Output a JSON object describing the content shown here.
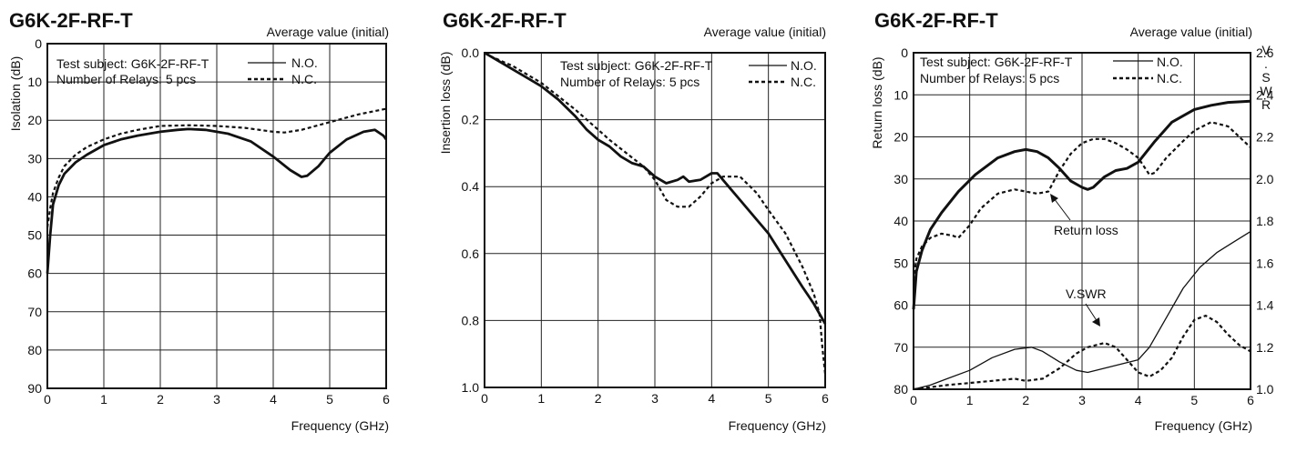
{
  "chart_data": [
    {
      "type": "line",
      "title": "G6K-2F-RF-T",
      "subtitle": "Average value (initial)",
      "xlabel": "Frequency (GHz)",
      "ylabel": "Isolation (dB)",
      "xlim": [
        0,
        6
      ],
      "ylim": [
        0,
        90
      ],
      "y_inverted": true,
      "grid": true,
      "xticks": [
        "0",
        "1",
        "2",
        "3",
        "4",
        "5",
        "6"
      ],
      "yticks": [
        "0",
        "10",
        "20",
        "30",
        "40",
        "50",
        "60",
        "70",
        "80",
        "90"
      ],
      "annotations": [
        "Test subject: G6K-2F-RF-T",
        "Number of Relays: 5 pcs"
      ],
      "series": [
        {
          "name": "N.O.",
          "style": "solid",
          "x": [
            0,
            0.05,
            0.1,
            0.2,
            0.3,
            0.5,
            0.7,
            1.0,
            1.3,
            1.6,
            2.0,
            2.3,
            2.5,
            2.8,
            3.2,
            3.6,
            4.0,
            4.3,
            4.5,
            4.6,
            4.8,
            5.0,
            5.3,
            5.6,
            5.8,
            5.95,
            6.0
          ],
          "y": [
            60,
            50,
            42,
            37,
            34,
            31,
            29,
            26.5,
            25,
            24,
            23,
            22.5,
            22.3,
            22.5,
            23.5,
            25.5,
            29.5,
            33,
            34.8,
            34.5,
            32,
            28.5,
            25,
            23,
            22.5,
            24,
            25
          ]
        },
        {
          "name": "N.C.",
          "style": "dashed",
          "x": [
            0,
            0.05,
            0.1,
            0.2,
            0.3,
            0.5,
            0.7,
            1.0,
            1.3,
            1.6,
            2.0,
            2.5,
            3.0,
            3.5,
            4.0,
            4.2,
            4.5,
            5.0,
            5.5,
            6.0
          ],
          "y": [
            48,
            43,
            39,
            35,
            32,
            29,
            27,
            25,
            23.5,
            22.5,
            21.5,
            21.3,
            21.5,
            22,
            23,
            23.2,
            22.5,
            20.5,
            18.5,
            17
          ]
        }
      ]
    },
    {
      "type": "line",
      "title": "G6K-2F-RF-T",
      "subtitle": "Average value (initial)",
      "xlabel": "Frequency (GHz)",
      "ylabel": "Insertion loss (dB)",
      "xlim": [
        0,
        6
      ],
      "ylim": [
        0,
        1.0
      ],
      "y_inverted": true,
      "grid": true,
      "xticks": [
        "0",
        "1",
        "2",
        "3",
        "4",
        "5",
        "6"
      ],
      "yticks": [
        "0.0",
        "0.2",
        "0.4",
        "0.6",
        "0.8",
        "1.0"
      ],
      "annotations": [
        "Test subject: G6K-2F-RF-T",
        "Number of Relays: 5 pcs"
      ],
      "series": [
        {
          "name": "N.O.",
          "style": "solid",
          "x": [
            0,
            0.1,
            0.3,
            0.5,
            0.8,
            1.0,
            1.3,
            1.6,
            1.8,
            2.0,
            2.2,
            2.4,
            2.6,
            2.8,
            3.0,
            3.2,
            3.4,
            3.5,
            3.6,
            3.8,
            4.0,
            4.1,
            4.3,
            4.5,
            4.8,
            5.0,
            5.3,
            5.6,
            5.8,
            6.0
          ],
          "y": [
            0.0,
            0.01,
            0.03,
            0.05,
            0.08,
            0.1,
            0.14,
            0.19,
            0.23,
            0.26,
            0.28,
            0.31,
            0.33,
            0.34,
            0.37,
            0.39,
            0.38,
            0.37,
            0.385,
            0.38,
            0.36,
            0.36,
            0.4,
            0.44,
            0.5,
            0.54,
            0.62,
            0.7,
            0.75,
            0.81
          ]
        },
        {
          "name": "N.C.",
          "style": "dashed",
          "x": [
            0,
            0.1,
            0.3,
            0.5,
            0.8,
            1.0,
            1.3,
            1.6,
            1.8,
            2.0,
            2.2,
            2.5,
            2.8,
            3.0,
            3.2,
            3.4,
            3.6,
            3.8,
            4.0,
            4.2,
            4.5,
            4.8,
            5.0,
            5.3,
            5.6,
            5.8,
            5.9,
            5.95,
            6.0
          ],
          "y": [
            0.0,
            0.01,
            0.025,
            0.04,
            0.07,
            0.09,
            0.13,
            0.17,
            0.2,
            0.23,
            0.26,
            0.3,
            0.34,
            0.38,
            0.44,
            0.46,
            0.46,
            0.43,
            0.39,
            0.37,
            0.37,
            0.42,
            0.47,
            0.54,
            0.64,
            0.72,
            0.78,
            0.88,
            0.96
          ]
        }
      ]
    },
    {
      "type": "line",
      "title": "G6K-2F-RF-T",
      "subtitle": "Average value (initial)",
      "xlabel": "Frequency (GHz)",
      "ylabel": "Return loss (dB)",
      "y2label": "V.SWR",
      "xlim": [
        0,
        6
      ],
      "ylim": [
        0,
        80
      ],
      "y2lim": [
        1.0,
        2.6
      ],
      "y_inverted": true,
      "grid": true,
      "xticks": [
        "0",
        "1",
        "2",
        "3",
        "4",
        "5",
        "6"
      ],
      "yticks": [
        "0",
        "10",
        "20",
        "30",
        "40",
        "50",
        "60",
        "70",
        "80"
      ],
      "y2ticks": [
        "2.6",
        "2.4",
        "2.2",
        "2.0",
        "1.8",
        "1.6",
        "1.4",
        "1.2",
        "1.0"
      ],
      "annotations": [
        "Test subject: G6K-2F-RF-T",
        "Number of Relays: 5 pcs",
        "Return loss",
        "V.SWR"
      ],
      "series": [
        {
          "name": "N.O.",
          "style": "solid",
          "group": "Return loss",
          "axis": "left",
          "width": "thick",
          "x": [
            0,
            0.05,
            0.15,
            0.3,
            0.5,
            0.8,
            1.1,
            1.5,
            1.8,
            2.0,
            2.2,
            2.4,
            2.6,
            2.8,
            3.0,
            3.1,
            3.2,
            3.4,
            3.6,
            3.8,
            4.0,
            4.3,
            4.6,
            5.0,
            5.3,
            5.6,
            6.0
          ],
          "y": [
            61,
            52,
            47,
            42,
            38,
            33,
            29,
            25,
            23.5,
            23,
            23.5,
            25,
            27.5,
            30.5,
            32,
            32.5,
            32,
            29.5,
            28,
            27.5,
            26,
            21,
            16.5,
            13.5,
            12.5,
            11.8,
            11.5
          ]
        },
        {
          "name": "N.C.",
          "style": "dashed",
          "group": "Return loss",
          "axis": "left",
          "width": "thin",
          "x": [
            0,
            0.05,
            0.15,
            0.3,
            0.5,
            0.7,
            0.8,
            1.0,
            1.2,
            1.5,
            1.8,
            2.0,
            2.2,
            2.4,
            2.6,
            2.8,
            3.0,
            3.2,
            3.4,
            3.6,
            3.8,
            4.0,
            4.2,
            4.3,
            4.5,
            4.8,
            5.0,
            5.3,
            5.6,
            5.8,
            6.0
          ],
          "y": [
            54,
            49,
            46,
            44,
            43,
            43.5,
            44,
            41,
            37,
            33.5,
            32.5,
            33,
            33.5,
            33,
            28,
            24,
            21.5,
            20.5,
            20.5,
            21.5,
            23,
            25,
            29,
            28.5,
            25,
            21,
            18.5,
            16.5,
            17.5,
            20,
            22.5
          ]
        },
        {
          "name": "N.O.",
          "style": "solid",
          "group": "V.SWR",
          "axis": "right",
          "width": "thin",
          "x": [
            0,
            0.3,
            0.6,
            1.0,
            1.4,
            1.8,
            2.1,
            2.3,
            2.6,
            2.9,
            3.1,
            3.4,
            3.7,
            4.0,
            4.2,
            4.5,
            4.8,
            5.1,
            5.4,
            5.7,
            6.0
          ],
          "y": [
            1.0,
            1.02,
            1.05,
            1.09,
            1.15,
            1.19,
            1.2,
            1.18,
            1.13,
            1.09,
            1.08,
            1.1,
            1.12,
            1.14,
            1.2,
            1.34,
            1.48,
            1.58,
            1.65,
            1.7,
            1.75
          ]
        },
        {
          "name": "N.C.",
          "style": "dashed",
          "group": "V.SWR",
          "axis": "right",
          "width": "thin",
          "x": [
            0,
            0.3,
            0.6,
            1.0,
            1.4,
            1.8,
            2.0,
            2.3,
            2.6,
            2.9,
            3.1,
            3.4,
            3.6,
            3.8,
            4.0,
            4.2,
            4.4,
            4.6,
            4.8,
            5.0,
            5.2,
            5.4,
            5.6,
            5.8,
            6.0
          ],
          "y": [
            1.0,
            1.01,
            1.02,
            1.03,
            1.04,
            1.05,
            1.04,
            1.05,
            1.1,
            1.17,
            1.2,
            1.22,
            1.2,
            1.14,
            1.08,
            1.06,
            1.09,
            1.15,
            1.25,
            1.33,
            1.35,
            1.32,
            1.26,
            1.21,
            1.18
          ]
        }
      ]
    }
  ]
}
